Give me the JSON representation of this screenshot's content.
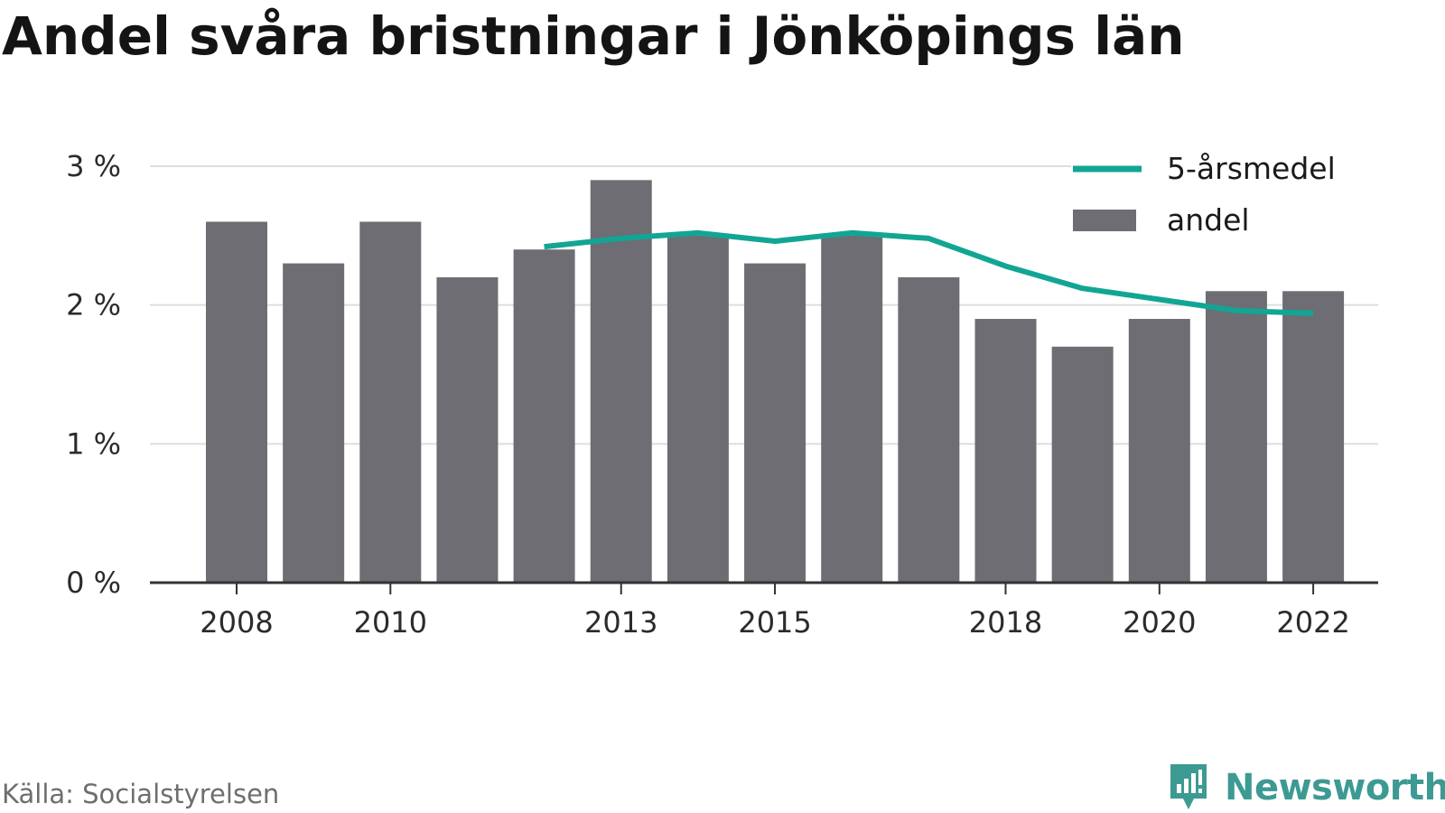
{
  "title": "Andel svåra bristningar i Jönköpings län",
  "source": "Källa: Socialstyrelsen",
  "brand": {
    "name": "Newsworthy",
    "icon": "newsworthy-logo-icon",
    "color": "#3d9a93"
  },
  "colors": {
    "bar": "#6e6d74",
    "line": "#12a594",
    "grid": "#dddddd",
    "axis": "#333333"
  },
  "chart_data": {
    "type": "bar",
    "title": "Andel svåra bristningar i Jönköpings län",
    "xlabel": "",
    "ylabel": "",
    "ylim": [
      0,
      3
    ],
    "yticks": [
      {
        "value": 0,
        "label": "0 %"
      },
      {
        "value": 1,
        "label": "1 %"
      },
      {
        "value": 2,
        "label": "2 %"
      },
      {
        "value": 3,
        "label": "3 %"
      }
    ],
    "categories": [
      2008,
      2009,
      2010,
      2011,
      2012,
      2013,
      2014,
      2015,
      2016,
      2017,
      2018,
      2019,
      2020,
      2021,
      2022
    ],
    "xtick_labels": [
      {
        "value": 2008,
        "label": "2008"
      },
      {
        "value": 2010,
        "label": "2010"
      },
      {
        "value": 2013,
        "label": "2013"
      },
      {
        "value": 2015,
        "label": "2015"
      },
      {
        "value": 2018,
        "label": "2018"
      },
      {
        "value": 2020,
        "label": "2020"
      },
      {
        "value": 2022,
        "label": "2022"
      }
    ],
    "grid": true,
    "legend_position": "top-right",
    "series": [
      {
        "name": "andel",
        "kind": "bar",
        "values": [
          2.6,
          2.3,
          2.6,
          2.2,
          2.4,
          2.9,
          2.5,
          2.3,
          2.5,
          2.2,
          1.9,
          1.7,
          1.9,
          2.1,
          2.1
        ]
      },
      {
        "name": "5-årsmedel",
        "kind": "line",
        "x": [
          2012,
          2013,
          2014,
          2015,
          2016,
          2017,
          2018,
          2019,
          2020,
          2021,
          2022
        ],
        "values": [
          2.42,
          2.48,
          2.52,
          2.46,
          2.52,
          2.48,
          2.28,
          2.12,
          2.04,
          1.96,
          1.94
        ]
      }
    ]
  }
}
